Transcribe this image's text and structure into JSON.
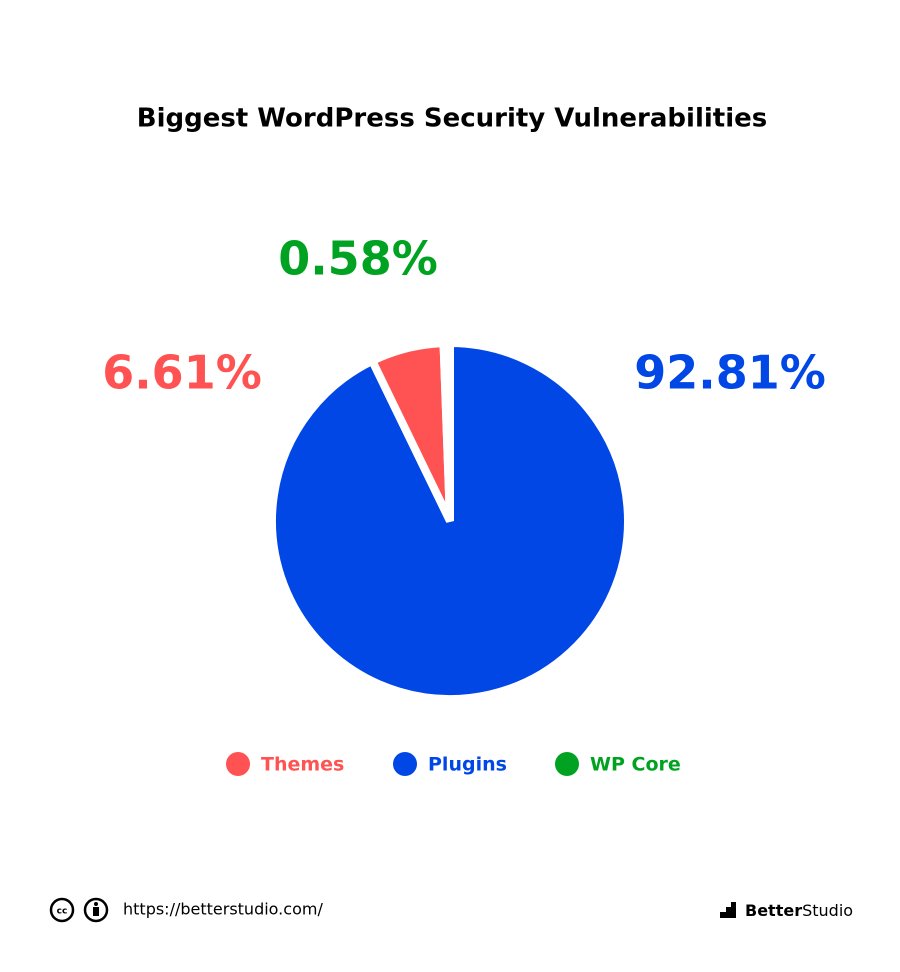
{
  "chart_data": {
    "type": "pie",
    "title": "Biggest WordPress Security Vulnerabilities",
    "categories": [
      "Themes",
      "Plugins",
      "WP Core"
    ],
    "values": [
      6.61,
      92.81,
      0.58
    ],
    "value_labels": [
      "6.61%",
      "92.81%",
      "0.58%"
    ],
    "colors": [
      "#ff5252",
      "#0047e6",
      "#00a321"
    ],
    "legend": "bottom"
  },
  "footer": {
    "url": "https://betterstudio.com/",
    "brand_bold": "Better",
    "brand_rest": "Studio"
  }
}
